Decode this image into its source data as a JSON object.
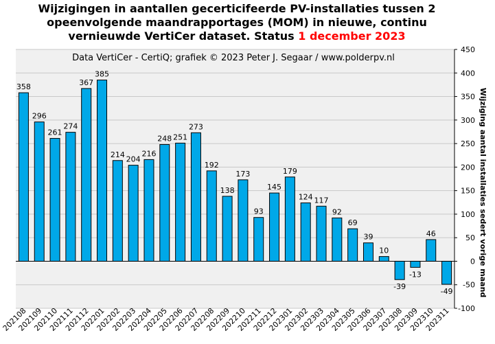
{
  "chart_data": {
    "type": "bar",
    "title": {
      "line1": "Wijzigingen in aantallen gecerticifeerde PV-installaties tussen 2",
      "line2": "opeenvolgende maandrapportages (MOM) in nieuwe, continu",
      "line3_prefix": "vernieuwde VertiCer dataset. Status ",
      "line3_date": "1 december 2023"
    },
    "credit": "Data VertiCer - CertiQ; grafiek © 2023 Peter J. Segaar / www.polderpv.nl",
    "ylabel": "Wijziging aantal installaties sedert vorige maand",
    "ylim": [
      -100,
      450
    ],
    "ytick_step": 50,
    "yaxis_position": "right",
    "grid": true,
    "categories": [
      "202108",
      "202109",
      "202110",
      "202111",
      "202112",
      "202201",
      "202202",
      "202203",
      "202204",
      "202205",
      "202206",
      "202207",
      "202208",
      "202209",
      "202210",
      "202211",
      "202212",
      "202301",
      "202302",
      "202303",
      "202304",
      "202305",
      "202306",
      "202307",
      "202308",
      "202309",
      "202310",
      "202311"
    ],
    "values": [
      358,
      296,
      261,
      274,
      367,
      385,
      214,
      204,
      216,
      248,
      251,
      273,
      192,
      138,
      173,
      93,
      145,
      179,
      124,
      117,
      92,
      69,
      39,
      10,
      -39,
      -13,
      46,
      -49
    ],
    "colors": {
      "bar_fill": "#00a8e8",
      "bar_stroke": "#000000",
      "plot_background": "#f0f0f0",
      "grid": "#c8c8c8",
      "title_accent": "#ff0000"
    }
  }
}
